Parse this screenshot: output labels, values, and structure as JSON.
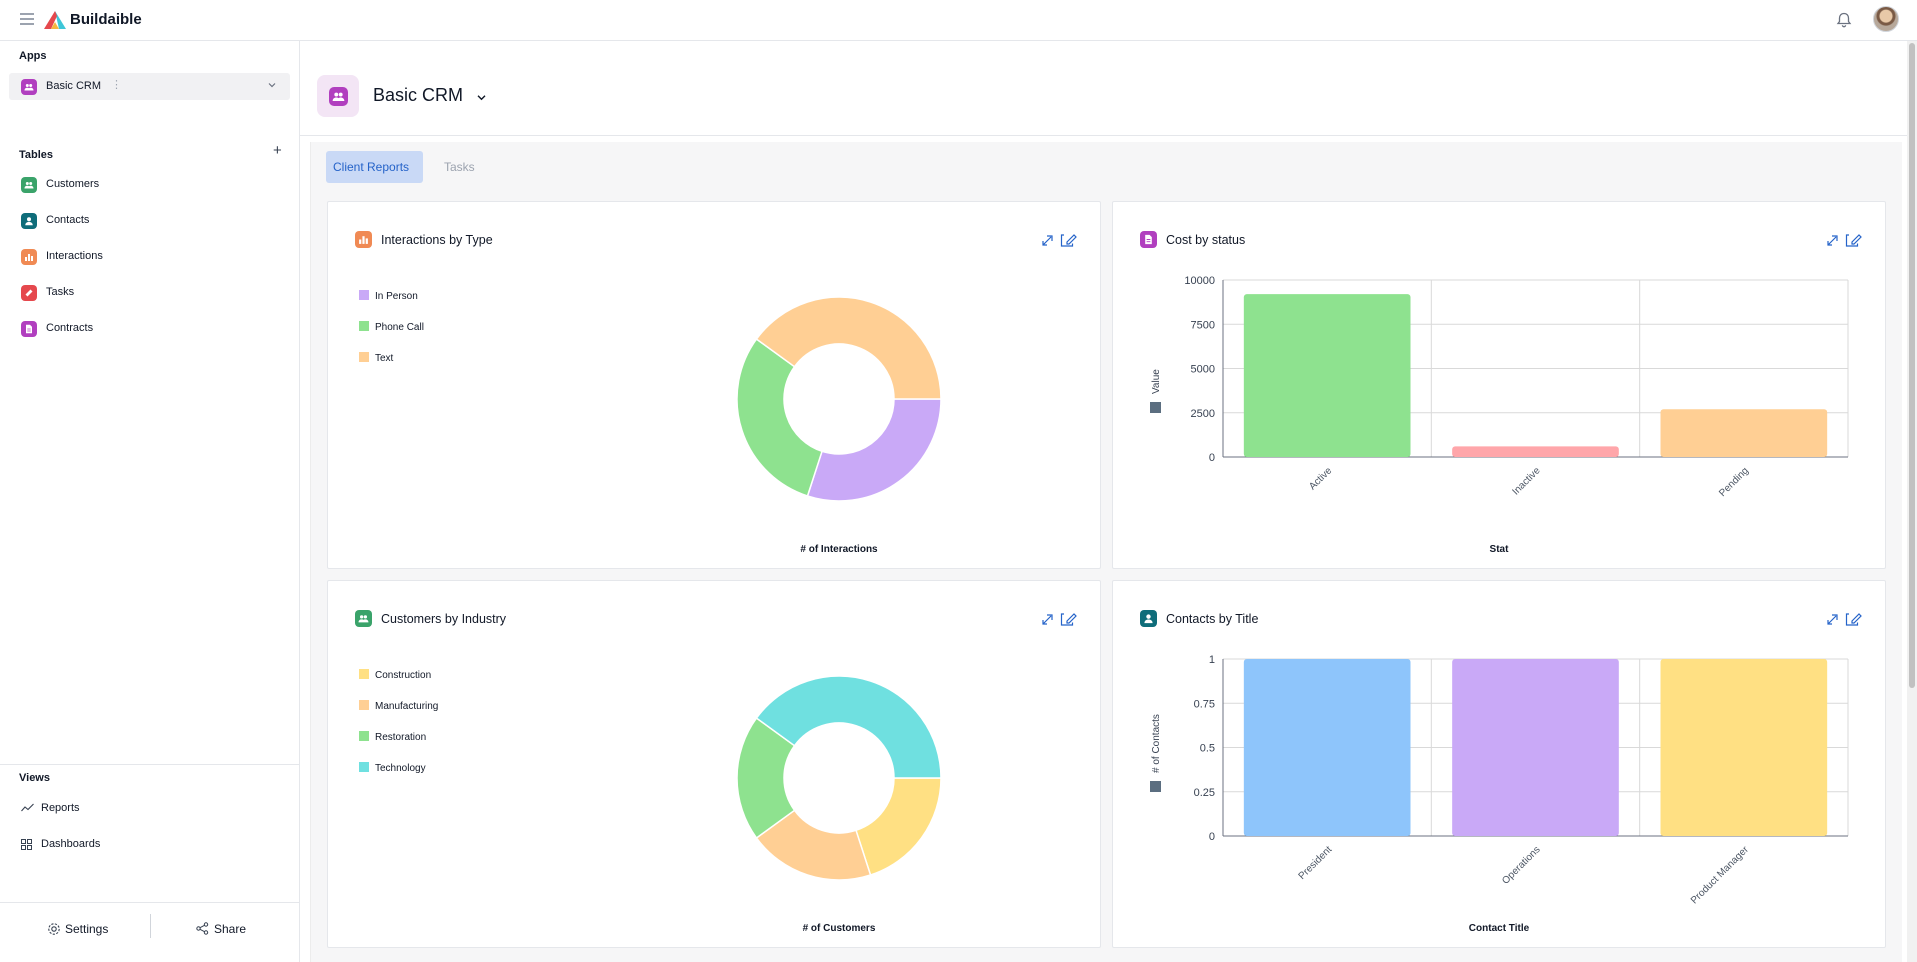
{
  "app": {
    "brand": "Buildaible"
  },
  "sidebar": {
    "apps_title": "Apps",
    "selected_app": "Basic CRM",
    "tables_title": "Tables",
    "tables": [
      {
        "label": "Customers",
        "color": "#3aa36a"
      },
      {
        "label": "Contacts",
        "color": "#0f6d7a"
      },
      {
        "label": "Interactions",
        "color": "#f08a54"
      },
      {
        "label": "Tasks",
        "color": "#e5484d"
      },
      {
        "label": "Contracts",
        "color": "#b13fbf"
      }
    ],
    "views_title": "Views",
    "views": [
      {
        "label": "Reports",
        "icon": "trend-icon"
      },
      {
        "label": "Dashboards",
        "icon": "grid-icon"
      }
    ],
    "settings_label": "Settings",
    "share_label": "Share"
  },
  "header": {
    "title": "Basic CRM"
  },
  "tabs": [
    {
      "label": "Client Reports",
      "active": true
    },
    {
      "label": "Tasks",
      "active": false
    }
  ],
  "cards": [
    {
      "title": "Interactions by Type",
      "xlabel": "# of Interactions",
      "icon_color": "#f08a54"
    },
    {
      "title": "Cost by status",
      "xlabel": "Stat",
      "ylabel": "Value",
      "icon_color": "#b13fbf"
    },
    {
      "title": "Customers by Industry",
      "xlabel": "# of Customers",
      "icon_color": "#3aa36a"
    },
    {
      "title": "Contacts by Title",
      "xlabel": "Contact Title",
      "ylabel": "# of Contacts",
      "icon_color": "#0f6d7a"
    }
  ],
  "chart_data": [
    {
      "type": "pie",
      "title": "Interactions by Type",
      "xlabel": "# of Interactions",
      "categories": [
        "In Person",
        "Phone Call",
        "Text"
      ],
      "values": [
        3,
        3,
        4
      ],
      "colors": [
        "#c9a9f7",
        "#8ee28f",
        "#ffcf94"
      ],
      "donut": true
    },
    {
      "type": "bar",
      "title": "Cost by status",
      "xlabel": "Stat",
      "ylabel": "Value",
      "categories": [
        "Active",
        "Inactive",
        "Pending"
      ],
      "values": [
        9200,
        600,
        2700
      ],
      "colors": [
        "#8ee28f",
        "#ffa6aa",
        "#ffcf94"
      ],
      "yticks": [
        0,
        2500,
        5000,
        7500,
        10000
      ],
      "ylim": [
        0,
        10000
      ],
      "grid": true
    },
    {
      "type": "pie",
      "title": "Customers by Industry",
      "xlabel": "# of Customers",
      "categories": [
        "Construction",
        "Manufacturing",
        "Restoration",
        "Technology"
      ],
      "values": [
        2,
        2,
        2,
        4
      ],
      "colors": [
        "#ffe083",
        "#ffcf94",
        "#8ee28f",
        "#6fe0e0"
      ],
      "donut": true
    },
    {
      "type": "bar",
      "title": "Contacts by Title",
      "xlabel": "Contact Title",
      "ylabel": "# of Contacts",
      "categories": [
        "President",
        "Operations",
        "Product Manager"
      ],
      "values": [
        1,
        1,
        1
      ],
      "colors": [
        "#8ec5fb",
        "#c9a9f7",
        "#ffe083"
      ],
      "yticks": [
        "0",
        "0.25",
        "0.5",
        "0.75",
        "1"
      ],
      "ylim": [
        0,
        1
      ],
      "grid": true
    }
  ]
}
